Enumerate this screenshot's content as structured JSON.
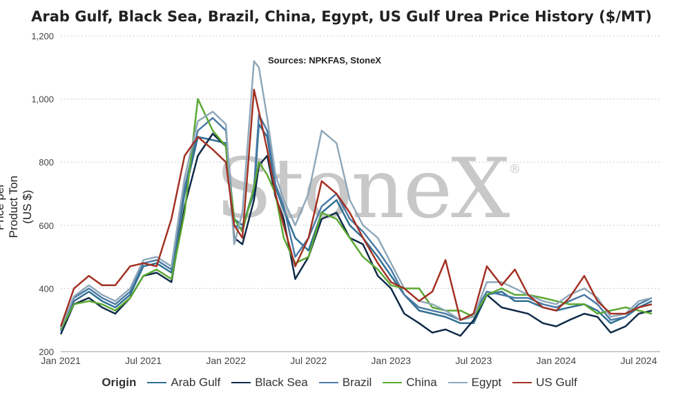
{
  "chart_data": {
    "type": "line",
    "title": "Arab Gulf, Black Sea, Brazil, China, Egypt, US Gulf Urea Price History ($/MT)",
    "subtitle": "Sources: NPKFAS, StoneX",
    "watermark": "StoneX",
    "ylabel": "Price per Product Ton (US $)",
    "ylim": [
      200,
      1200
    ],
    "yticks": [
      "200",
      "400",
      "600",
      "800",
      "1,000",
      "1,200"
    ],
    "xticks": [
      "Jan 2021",
      "Jul 2021",
      "Jan 2022",
      "Jul 2022",
      "Jan 2023",
      "Jul 2023",
      "Jan 2024",
      "Jul 2024"
    ],
    "legend_title": "Origin",
    "grid": "horizontal",
    "series": [
      {
        "name": "Arab Gulf",
        "color": "#2f6f91",
        "x": [
          2021.0,
          2021.08,
          2021.17,
          2021.25,
          2021.33,
          2021.42,
          2021.5,
          2021.58,
          2021.67,
          2021.75,
          2021.83,
          2021.92,
          2022.0,
          2022.05,
          2022.1,
          2022.17,
          2022.2,
          2022.25,
          2022.3,
          2022.35,
          2022.42,
          2022.5,
          2022.58,
          2022.67,
          2022.75,
          2022.83,
          2022.92,
          2023.0,
          2023.08,
          2023.17,
          2023.25,
          2023.33,
          2023.42,
          2023.5,
          2023.58,
          2023.67,
          2023.75,
          2023.83,
          2023.92,
          2024.0,
          2024.08,
          2024.17,
          2024.25,
          2024.33,
          2024.42,
          2024.5,
          2024.58
        ],
        "y": [
          270,
          360,
          390,
          360,
          340,
          380,
          470,
          480,
          450,
          700,
          880,
          870,
          860,
          620,
          600,
          700,
          920,
          880,
          720,
          650,
          560,
          520,
          640,
          680,
          600,
          560,
          500,
          440,
          380,
          330,
          320,
          310,
          290,
          290,
          380,
          390,
          360,
          360,
          340,
          330,
          340,
          350,
          330,
          290,
          310,
          340,
          360
        ]
      },
      {
        "name": "Black Sea",
        "color": "#0f2a47",
        "x": [
          2021.0,
          2021.08,
          2021.17,
          2021.25,
          2021.33,
          2021.42,
          2021.5,
          2021.58,
          2021.67,
          2021.75,
          2021.83,
          2021.92,
          2022.0,
          2022.05,
          2022.1,
          2022.17,
          2022.2,
          2022.25,
          2022.3,
          2022.35,
          2022.42,
          2022.5,
          2022.58,
          2022.67,
          2022.75,
          2022.83,
          2022.92,
          2023.0,
          2023.08,
          2023.17,
          2023.25,
          2023.33,
          2023.42,
          2023.5,
          2023.58,
          2023.67,
          2023.75,
          2023.83,
          2023.92,
          2024.0,
          2024.08,
          2024.17,
          2024.25,
          2024.33,
          2024.42,
          2024.5,
          2024.58
        ],
        "y": [
          255,
          350,
          370,
          340,
          320,
          370,
          440,
          450,
          420,
          660,
          820,
          890,
          850,
          560,
          540,
          680,
          790,
          820,
          690,
          620,
          430,
          500,
          620,
          640,
          560,
          540,
          440,
          400,
          320,
          290,
          260,
          270,
          250,
          300,
          380,
          340,
          330,
          320,
          290,
          280,
          300,
          320,
          310,
          260,
          280,
          320,
          330
        ]
      },
      {
        "name": "Brazil",
        "color": "#4a7aa6",
        "x": [
          2021.0,
          2021.08,
          2021.17,
          2021.25,
          2021.33,
          2021.42,
          2021.5,
          2021.58,
          2021.67,
          2021.75,
          2021.83,
          2021.92,
          2022.0,
          2022.05,
          2022.1,
          2022.17,
          2022.2,
          2022.25,
          2022.3,
          2022.35,
          2022.42,
          2022.5,
          2022.58,
          2022.67,
          2022.75,
          2022.83,
          2022.92,
          2023.0,
          2023.08,
          2023.17,
          2023.25,
          2023.33,
          2023.42,
          2023.5,
          2023.58,
          2023.67,
          2023.75,
          2023.83,
          2023.92,
          2024.0,
          2024.08,
          2024.17,
          2024.25,
          2024.33,
          2024.42,
          2024.5,
          2024.58
        ],
        "y": [
          265,
          370,
          400,
          370,
          350,
          390,
          480,
          490,
          460,
          720,
          900,
          940,
          900,
          600,
          590,
          720,
          950,
          900,
          730,
          660,
          500,
          560,
          660,
          700,
          620,
          580,
          520,
          460,
          380,
          340,
          330,
          320,
          300,
          320,
          390,
          380,
          370,
          370,
          350,
          340,
          360,
          380,
          350,
          300,
          310,
          350,
          370
        ]
      },
      {
        "name": "China",
        "color": "#5aa832",
        "x": [
          2021.0,
          2021.08,
          2021.17,
          2021.25,
          2021.33,
          2021.42,
          2021.5,
          2021.58,
          2021.67,
          2021.75,
          2021.83,
          2021.92,
          2022.0,
          2022.05,
          2022.1,
          2022.17,
          2022.2,
          2022.25,
          2022.3,
          2022.35,
          2022.42,
          2022.5,
          2022.58,
          2022.67,
          2022.75,
          2022.83,
          2022.92,
          2023.0,
          2023.08,
          2023.17,
          2023.25,
          2023.33,
          2023.42,
          2023.5,
          2023.58,
          2023.67,
          2023.75,
          2023.83,
          2023.92,
          2024.0,
          2024.08,
          2024.17,
          2024.25,
          2024.33,
          2024.42,
          2024.5,
          2024.58
        ],
        "y": [
          270,
          350,
          360,
          350,
          330,
          370,
          440,
          460,
          430,
          640,
          1000,
          900,
          850,
          620,
          580,
          720,
          800,
          760,
          700,
          560,
          480,
          500,
          640,
          620,
          560,
          500,
          460,
          410,
          400,
          400,
          340,
          330,
          330,
          310,
          380,
          400,
          380,
          380,
          370,
          360,
          350,
          350,
          320,
          330,
          340,
          330,
          320
        ]
      },
      {
        "name": "Egypt",
        "color": "#8fa8ba",
        "x": [
          2021.0,
          2021.08,
          2021.17,
          2021.25,
          2021.33,
          2021.42,
          2021.5,
          2021.58,
          2021.67,
          2021.75,
          2021.83,
          2021.92,
          2022.0,
          2022.05,
          2022.1,
          2022.17,
          2022.2,
          2022.25,
          2022.3,
          2022.35,
          2022.42,
          2022.5,
          2022.58,
          2022.67,
          2022.75,
          2022.83,
          2022.92,
          2023.0,
          2023.08,
          2023.17,
          2023.25,
          2023.33,
          2023.42,
          2023.5,
          2023.58,
          2023.67,
          2023.75,
          2023.83,
          2023.92,
          2024.0,
          2024.08,
          2024.17,
          2024.25,
          2024.33,
          2024.42,
          2024.5,
          2024.58
        ],
        "y": [
          275,
          375,
          410,
          380,
          360,
          400,
          490,
          500,
          470,
          750,
          930,
          960,
          920,
          540,
          640,
          1120,
          1100,
          940,
          760,
          680,
          600,
          700,
          900,
          860,
          680,
          600,
          560,
          480,
          400,
          360,
          350,
          330,
          300,
          310,
          420,
          420,
          400,
          380,
          360,
          350,
          380,
          400,
          370,
          310,
          320,
          360,
          370
        ]
      },
      {
        "name": "US Gulf",
        "color": "#a23022",
        "x": [
          2021.0,
          2021.08,
          2021.17,
          2021.25,
          2021.33,
          2021.42,
          2021.5,
          2021.58,
          2021.67,
          2021.75,
          2021.83,
          2021.92,
          2022.0,
          2022.05,
          2022.1,
          2022.17,
          2022.2,
          2022.25,
          2022.3,
          2022.35,
          2022.42,
          2022.5,
          2022.58,
          2022.67,
          2022.75,
          2022.83,
          2022.92,
          2023.0,
          2023.08,
          2023.17,
          2023.25,
          2023.33,
          2023.42,
          2023.5,
          2023.58,
          2023.67,
          2023.75,
          2023.83,
          2023.92,
          2024.0,
          2024.08,
          2024.17,
          2024.25,
          2024.33,
          2024.42,
          2024.5,
          2024.58
        ],
        "y": [
          280,
          400,
          440,
          410,
          410,
          470,
          480,
          470,
          620,
          820,
          880,
          840,
          800,
          600,
          560,
          1030,
          960,
          840,
          700,
          600,
          470,
          560,
          740,
          700,
          640,
          560,
          480,
          420,
          400,
          360,
          390,
          490,
          300,
          320,
          470,
          410,
          460,
          380,
          340,
          330,
          370,
          440,
          360,
          320,
          320,
          340,
          350
        ]
      }
    ]
  }
}
